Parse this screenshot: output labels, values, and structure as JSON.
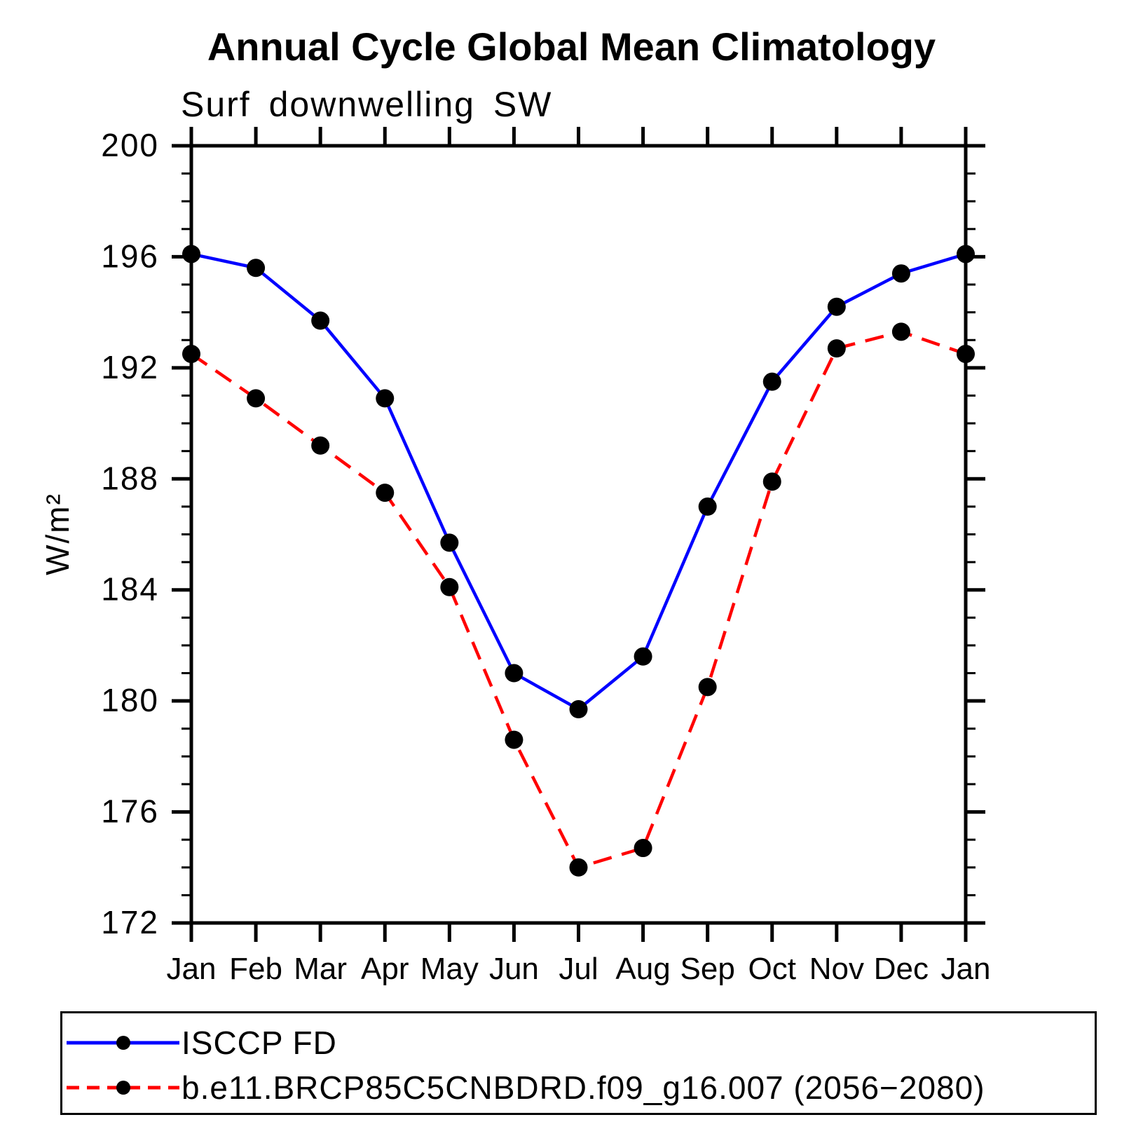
{
  "chart_data": {
    "type": "line",
    "title": "Annual Cycle Global Mean Climatology",
    "subtitle": "Surf downwelling SW",
    "ylabel": "W/m²",
    "xlabel": "",
    "categories": [
      "Jan",
      "Feb",
      "Mar",
      "Apr",
      "May",
      "Jun",
      "Jul",
      "Aug",
      "Sep",
      "Oct",
      "Nov",
      "Dec",
      "Jan"
    ],
    "series": [
      {
        "name": "ISCCP FD",
        "color": "#0000ff",
        "line_style": "solid",
        "marker": "circle",
        "marker_color": "#000000",
        "values": [
          196.1,
          195.6,
          193.7,
          190.9,
          185.7,
          181.0,
          179.7,
          181.6,
          187.0,
          191.5,
          194.2,
          195.4,
          196.1
        ]
      },
      {
        "name": "b.e11.BRCP85C5CNBDRD.f09_g16.007 (2056−2080)",
        "color": "#ff0000",
        "line_style": "dashed",
        "marker": "circle",
        "marker_color": "#000000",
        "values": [
          192.5,
          190.9,
          189.2,
          187.5,
          184.1,
          178.6,
          174.0,
          174.7,
          180.5,
          187.9,
          192.7,
          193.3,
          192.5
        ]
      }
    ],
    "ylim": [
      172,
      200
    ],
    "y_major_ticks": [
      172,
      176,
      180,
      184,
      188,
      192,
      196,
      200
    ],
    "y_minor_step": 1,
    "grid": false,
    "legend_position": "bottom-left-box",
    "axis_color": "#000000",
    "text_color": "#000000"
  }
}
